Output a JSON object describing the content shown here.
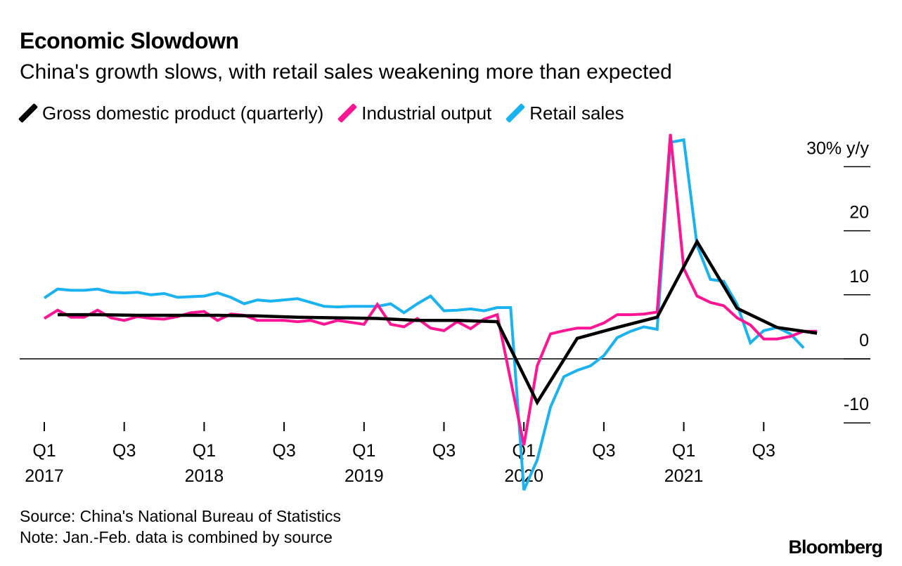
{
  "title": "Economic Slowdown",
  "subtitle": "China's growth slows, with retail sales weakening more than expected",
  "source": "Source: China's National Bureau of Statistics",
  "note": "Note: Jan.-Feb. data is combined by source",
  "brand": "Bloomberg",
  "colors": {
    "gdp": "#000000",
    "industrial": "#ff1493",
    "retail": "#1ab2f0",
    "axis": "#000000"
  },
  "chart_data": {
    "type": "line",
    "title": "Economic Slowdown",
    "subtitle": "China's growth slows, with retail sales weakening more than expected",
    "x_unit": "months since Jan 2017",
    "ylim": [
      -10,
      30
    ],
    "y_ticks": [
      {
        "value": 30,
        "label": "30% y/y"
      },
      {
        "value": 20,
        "label": "20"
      },
      {
        "value": 10,
        "label": "10"
      },
      {
        "value": 0,
        "label": "0"
      },
      {
        "value": -10,
        "label": "-10"
      }
    ],
    "x_ticks": [
      {
        "x": 0,
        "label": "Q1",
        "year": "2017"
      },
      {
        "x": 6,
        "label": "Q3",
        "year": ""
      },
      {
        "x": 12,
        "label": "Q1",
        "year": "2018"
      },
      {
        "x": 18,
        "label": "Q3",
        "year": ""
      },
      {
        "x": 24,
        "label": "Q1",
        "year": "2019"
      },
      {
        "x": 30,
        "label": "Q3",
        "year": ""
      },
      {
        "x": 36,
        "label": "Q1",
        "year": "2020"
      },
      {
        "x": 42,
        "label": "Q3",
        "year": ""
      },
      {
        "x": 48,
        "label": "Q1",
        "year": "2021"
      },
      {
        "x": 54,
        "label": "Q3",
        "year": ""
      }
    ],
    "legend": [
      "Gross domestic product (quarterly)",
      "Industrial output",
      "Retail sales"
    ],
    "series": [
      {
        "name": "Gross domestic product (quarterly)",
        "key": "gdp",
        "points": [
          [
            1,
            6.9
          ],
          [
            4,
            6.9
          ],
          [
            7,
            6.8
          ],
          [
            10,
            6.8
          ],
          [
            13,
            6.8
          ],
          [
            16,
            6.7
          ],
          [
            19,
            6.5
          ],
          [
            22,
            6.4
          ],
          [
            25,
            6.3
          ],
          [
            28,
            6.0
          ],
          [
            31,
            6.0
          ],
          [
            34,
            5.8
          ],
          [
            37,
            -6.8
          ],
          [
            40,
            3.2
          ],
          [
            43,
            4.9
          ],
          [
            46,
            6.5
          ],
          [
            49,
            18.3
          ],
          [
            52,
            7.9
          ],
          [
            55,
            4.9
          ],
          [
            58,
            4.0
          ]
        ]
      },
      {
        "name": "Industrial output",
        "key": "industrial",
        "points": [
          [
            0,
            6.3
          ],
          [
            1,
            7.6
          ],
          [
            2,
            6.5
          ],
          [
            3,
            6.5
          ],
          [
            4,
            7.6
          ],
          [
            5,
            6.4
          ],
          [
            6,
            6.0
          ],
          [
            7,
            6.6
          ],
          [
            8,
            6.3
          ],
          [
            9,
            6.2
          ],
          [
            10,
            6.6
          ],
          [
            11,
            7.2
          ],
          [
            12,
            7.4
          ],
          [
            13,
            6.0
          ],
          [
            14,
            7.0
          ],
          [
            15,
            6.8
          ],
          [
            16,
            6.0
          ],
          [
            17,
            6.0
          ],
          [
            18,
            6.0
          ],
          [
            19,
            5.8
          ],
          [
            20,
            6.0
          ],
          [
            21,
            5.4
          ],
          [
            22,
            6.0
          ],
          [
            23,
            5.7
          ],
          [
            24,
            5.4
          ],
          [
            25,
            8.5
          ],
          [
            26,
            5.4
          ],
          [
            27,
            5.0
          ],
          [
            28,
            6.3
          ],
          [
            29,
            4.8
          ],
          [
            30,
            4.4
          ],
          [
            31,
            5.8
          ],
          [
            32,
            4.7
          ],
          [
            33,
            6.2
          ],
          [
            34,
            6.9
          ],
          [
            36,
            -13.5
          ],
          [
            37,
            -1.1
          ],
          [
            38,
            3.9
          ],
          [
            39,
            4.4
          ],
          [
            40,
            4.8
          ],
          [
            41,
            4.8
          ],
          [
            42,
            5.6
          ],
          [
            43,
            6.9
          ],
          [
            44,
            6.9
          ],
          [
            45,
            7.0
          ],
          [
            46,
            7.3
          ],
          [
            47,
            35.1
          ],
          [
            48,
            14.1
          ],
          [
            49,
            9.8
          ],
          [
            50,
            8.8
          ],
          [
            51,
            8.3
          ],
          [
            52,
            6.4
          ],
          [
            53,
            5.3
          ],
          [
            54,
            3.1
          ],
          [
            55,
            3.1
          ],
          [
            56,
            3.5
          ],
          [
            57,
            4.3
          ],
          [
            58,
            4.3
          ]
        ]
      },
      {
        "name": "Retail sales",
        "key": "retail",
        "points": [
          [
            0,
            9.5
          ],
          [
            1,
            10.9
          ],
          [
            2,
            10.7
          ],
          [
            3,
            10.7
          ],
          [
            4,
            10.9
          ],
          [
            5,
            10.4
          ],
          [
            6,
            10.3
          ],
          [
            7,
            10.4
          ],
          [
            8,
            10.0
          ],
          [
            9,
            10.2
          ],
          [
            10,
            9.6
          ],
          [
            11,
            9.7
          ],
          [
            12,
            9.8
          ],
          [
            13,
            10.3
          ],
          [
            14,
            9.6
          ],
          [
            15,
            8.6
          ],
          [
            16,
            9.2
          ],
          [
            17,
            9.0
          ],
          [
            18,
            9.2
          ],
          [
            19,
            9.4
          ],
          [
            20,
            8.8
          ],
          [
            21,
            8.2
          ],
          [
            22,
            8.1
          ],
          [
            23,
            8.2
          ],
          [
            24,
            8.2
          ],
          [
            25,
            8.2
          ],
          [
            26,
            8.6
          ],
          [
            27,
            7.2
          ],
          [
            28,
            8.6
          ],
          [
            29,
            9.8
          ],
          [
            30,
            7.5
          ],
          [
            31,
            7.6
          ],
          [
            32,
            7.8
          ],
          [
            33,
            7.5
          ],
          [
            34,
            8.0
          ],
          [
            35,
            8.0
          ],
          [
            36,
            -20.5
          ],
          [
            37,
            -15.8
          ],
          [
            38,
            -7.5
          ],
          [
            39,
            -2.8
          ],
          [
            40,
            -1.8
          ],
          [
            41,
            -1.1
          ],
          [
            42,
            0.5
          ],
          [
            43,
            3.3
          ],
          [
            44,
            4.3
          ],
          [
            45,
            5.0
          ],
          [
            46,
            4.6
          ],
          [
            47,
            33.8
          ],
          [
            48,
            34.2
          ],
          [
            49,
            17.7
          ],
          [
            50,
            12.4
          ],
          [
            51,
            12.1
          ],
          [
            52,
            8.5
          ],
          [
            53,
            2.5
          ],
          [
            54,
            4.4
          ],
          [
            55,
            4.9
          ],
          [
            56,
            3.9
          ],
          [
            57,
            1.7
          ]
        ]
      }
    ]
  }
}
